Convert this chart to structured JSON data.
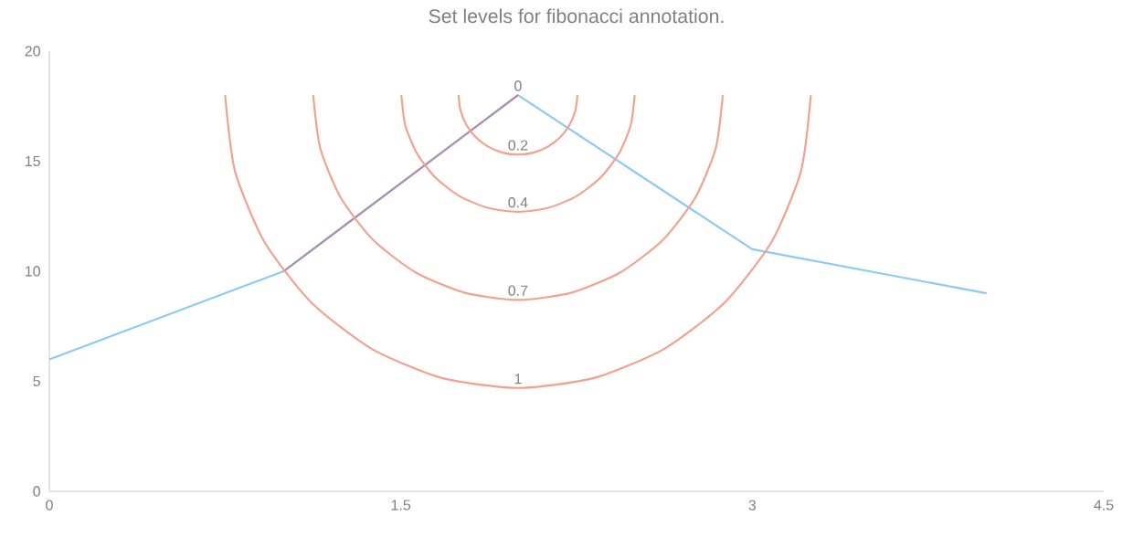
{
  "chart_data": {
    "type": "line",
    "title": "Set levels for fibonacci annotation.",
    "xlim": [
      0,
      4.5
    ],
    "xticks": [
      0,
      1.5,
      3,
      4.5
    ],
    "ylim": [
      0,
      20
    ],
    "yticks": [
      0,
      5,
      10,
      15,
      20
    ],
    "marker": "none",
    "line_style": "solid",
    "series": [
      {
        "color": "#8ec9f2",
        "x": [
          0,
          1,
          2,
          3,
          4
        ],
        "values": [
          6,
          10,
          18,
          11,
          9
        ]
      },
      {
        "color": "#b08aaa",
        "x": [
          1,
          2
        ],
        "values": [
          10,
          18
        ]
      },
      {
        "color": "#f4a08e",
        "x": [
          2.254,
          2.245,
          2.22,
          2.18,
          2.127,
          2.066,
          2,
          1.934,
          1.873,
          1.82,
          1.78,
          1.755,
          1.746
        ],
        "values": [
          18,
          17.3,
          16.65,
          16.09,
          15.66,
          15.39,
          15.3,
          15.39,
          15.66,
          16.09,
          16.65,
          17.3,
          18
        ]
      },
      {
        "color": "#f4a08e",
        "x": [
          2.498,
          2.481,
          2.431,
          2.352,
          2.249,
          2.129,
          2,
          1.871,
          1.751,
          1.648,
          1.569,
          1.519,
          1.502
        ],
        "values": [
          18,
          16.63,
          15.35,
          14.25,
          13.41,
          12.88,
          12.7,
          12.88,
          13.41,
          14.25,
          15.35,
          16.63,
          18
        ]
      },
      {
        "color": "#f4a08e",
        "x": [
          2.874,
          2.844,
          2.757,
          2.618,
          2.437,
          2.226,
          2,
          1.774,
          1.563,
          1.382,
          1.243,
          1.156,
          1.126
        ],
        "values": [
          18,
          15.59,
          13.35,
          11.42,
          9.95,
          9.02,
          8.7,
          9.02,
          9.95,
          11.42,
          13.35,
          15.59,
          18
        ]
      },
      {
        "color": "#f4a08e",
        "x": [
          3.25,
          3.208,
          3.083,
          2.884,
          2.625,
          2.324,
          2,
          1.676,
          1.375,
          1.116,
          0.917,
          0.792,
          0.75
        ],
        "values": [
          18,
          14.56,
          11.35,
          8.6,
          6.48,
          5.15,
          4.7,
          5.15,
          6.48,
          8.6,
          11.35,
          14.56,
          18
        ]
      }
    ],
    "annotations": [
      "0",
      "0.2",
      "0.4",
      "0.7",
      "1"
    ]
  }
}
